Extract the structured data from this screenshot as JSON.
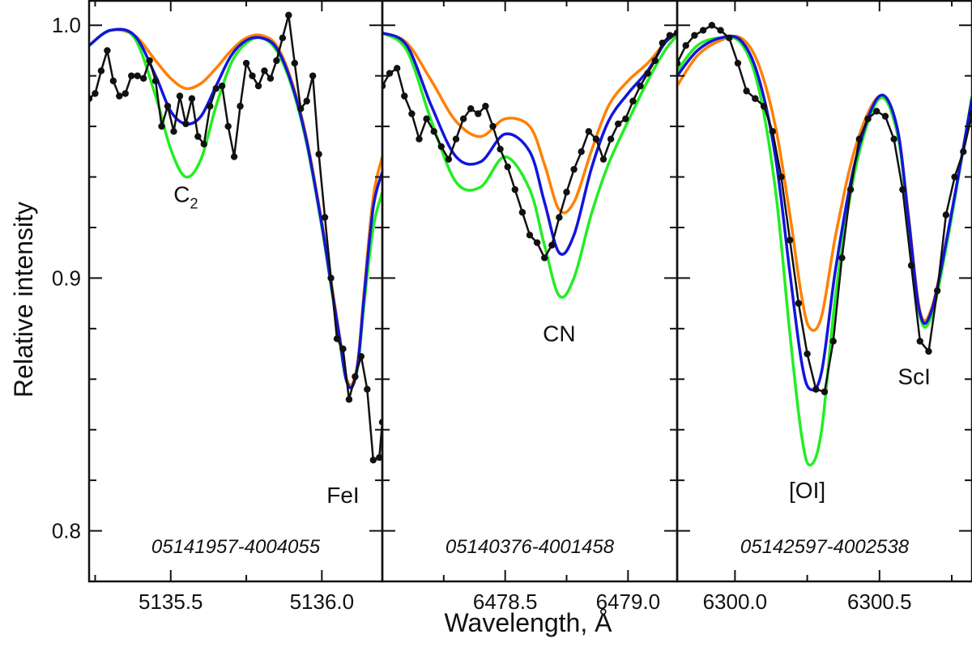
{
  "chart_data": {
    "type": "line",
    "ylabel": "Relative intensity",
    "xlabel": "Wavelength, Å",
    "ylim": [
      0.78,
      1.01
    ],
    "yticks": [
      {
        "value": 1.0,
        "label": "1.0"
      },
      {
        "value": 0.9,
        "label": "0.9"
      },
      {
        "value": 0.8,
        "label": "0.8"
      }
    ],
    "y_minor_ticks": [
      0.98,
      0.96,
      0.94,
      0.92,
      0.88,
      0.86,
      0.84,
      0.82
    ],
    "colors": {
      "observed": "#111111",
      "orange": "#ff8000",
      "green": "#22ee22",
      "blue": "#1414dd"
    },
    "panels": [
      {
        "id_label": "05141957-4004055",
        "xlim": [
          5135.23,
          5136.2
        ],
        "xticks": [
          {
            "value": 5135.5,
            "label": "5135.5"
          },
          {
            "value": 5136.0,
            "label": "5136.0"
          }
        ],
        "x_minor_ticks": [
          5135.25,
          5135.75
        ],
        "line_labels": [
          {
            "text": "C",
            "sub": "2",
            "x": 5135.55,
            "y": 0.93
          },
          {
            "text": "FeI",
            "x": 5136.07,
            "y": 0.811
          }
        ],
        "series": [
          {
            "key": "orange",
            "x": [
              5135.23,
              5135.3,
              5135.38,
              5135.45,
              5135.5,
              5135.55,
              5135.6,
              5135.65,
              5135.7,
              5135.75,
              5135.8,
              5135.85,
              5135.9,
              5135.95,
              5136.0,
              5136.03,
              5136.06,
              5136.08,
              5136.1,
              5136.12,
              5136.14,
              5136.17,
              5136.2
            ],
            "y": [
              0.992,
              0.998,
              0.996,
              0.986,
              0.979,
              0.975,
              0.977,
              0.983,
              0.99,
              0.995,
              0.996,
              0.992,
              0.978,
              0.955,
              0.922,
              0.899,
              0.876,
              0.861,
              0.858,
              0.868,
              0.895,
              0.932,
              0.948
            ]
          },
          {
            "key": "green",
            "x": [
              5135.23,
              5135.3,
              5135.38,
              5135.45,
              5135.5,
              5135.55,
              5135.6,
              5135.65,
              5135.7,
              5135.75,
              5135.8,
              5135.85,
              5135.9,
              5135.95,
              5136.0,
              5136.03,
              5136.06,
              5136.08,
              5136.1,
              5136.12,
              5136.14,
              5136.17,
              5136.2
            ],
            "y": [
              0.992,
              0.998,
              0.995,
              0.972,
              0.951,
              0.94,
              0.947,
              0.968,
              0.985,
              0.993,
              0.995,
              0.99,
              0.976,
              0.953,
              0.92,
              0.897,
              0.874,
              0.86,
              0.857,
              0.866,
              0.89,
              0.92,
              0.934
            ]
          },
          {
            "key": "blue",
            "x": [
              5135.23,
              5135.3,
              5135.38,
              5135.45,
              5135.5,
              5135.55,
              5135.6,
              5135.65,
              5135.7,
              5135.75,
              5135.8,
              5135.85,
              5135.9,
              5135.95,
              5136.0,
              5136.03,
              5136.06,
              5136.08,
              5136.1,
              5136.12,
              5136.14,
              5136.17,
              5136.2
            ],
            "y": [
              0.992,
              0.998,
              0.996,
              0.98,
              0.966,
              0.961,
              0.964,
              0.976,
              0.988,
              0.994,
              0.995,
              0.991,
              0.977,
              0.954,
              0.921,
              0.898,
              0.875,
              0.86,
              0.857,
              0.867,
              0.893,
              0.928,
              0.942
            ]
          },
          {
            "key": "observed",
            "points": true,
            "x": [
              5135.23,
              5135.25,
              5135.27,
              5135.29,
              5135.31,
              5135.33,
              5135.35,
              5135.37,
              5135.39,
              5135.41,
              5135.43,
              5135.45,
              5135.47,
              5135.49,
              5135.51,
              5135.53,
              5135.55,
              5135.57,
              5135.59,
              5135.61,
              5135.63,
              5135.65,
              5135.67,
              5135.69,
              5135.71,
              5135.73,
              5135.75,
              5135.77,
              5135.79,
              5135.81,
              5135.83,
              5135.85,
              5135.87,
              5135.89,
              5135.91,
              5135.93,
              5135.95,
              5135.97,
              5135.99,
              5136.01,
              5136.03,
              5136.05,
              5136.07,
              5136.09,
              5136.11,
              5136.13,
              5136.15,
              5136.17,
              5136.19,
              5136.2
            ],
            "y": [
              0.971,
              0.973,
              0.982,
              0.99,
              0.978,
              0.972,
              0.973,
              0.98,
              0.98,
              0.979,
              0.986,
              0.978,
              0.96,
              0.968,
              0.958,
              0.972,
              0.961,
              0.971,
              0.956,
              0.953,
              0.968,
              0.975,
              0.976,
              0.96,
              0.948,
              0.968,
              0.985,
              0.98,
              0.976,
              0.982,
              0.979,
              0.986,
              0.995,
              1.004,
              0.985,
              0.967,
              0.97,
              0.98,
              0.949,
              0.924,
              0.9,
              0.876,
              0.872,
              0.852,
              0.861,
              0.869,
              0.856,
              0.828,
              0.829,
              0.843
            ]
          }
        ]
      },
      {
        "id_label": "05140376-4001458",
        "xlim": [
          5135.23,
          5136.2
        ],
        "xticks": [],
        "x_minor_ticks": [],
        "dx": 1343.0,
        "xticks_real": [
          {
            "value": 6478.5,
            "label": "6478.5"
          },
          {
            "value": 6479.0,
            "label": "6479.0"
          }
        ],
        "x_real_minor_ticks": [
          6478.25,
          6478.75
        ],
        "xlim_real": [
          6478.0,
          6479.2
        ],
        "line_labels": [
          {
            "text": "CN",
            "x": 6478.72,
            "y": 0.875
          }
        ],
        "series": [
          {
            "key": "orange",
            "x": [
              6478.0,
              6478.1,
              6478.2,
              6478.3,
              6478.4,
              6478.5,
              6478.6,
              6478.66,
              6478.72,
              6478.78,
              6478.85,
              6478.92,
              6479.0,
              6479.08,
              6479.15,
              6479.2
            ],
            "y": [
              0.997,
              0.993,
              0.978,
              0.962,
              0.956,
              0.963,
              0.96,
              0.945,
              0.927,
              0.93,
              0.95,
              0.968,
              0.978,
              0.985,
              0.993,
              0.997
            ]
          },
          {
            "key": "green",
            "x": [
              6478.0,
              6478.1,
              6478.2,
              6478.3,
              6478.4,
              6478.5,
              6478.6,
              6478.66,
              6478.72,
              6478.78,
              6478.85,
              6478.92,
              6479.0,
              6479.08,
              6479.15,
              6479.2
            ],
            "y": [
              0.997,
              0.99,
              0.962,
              0.938,
              0.936,
              0.948,
              0.935,
              0.913,
              0.893,
              0.9,
              0.925,
              0.945,
              0.962,
              0.978,
              0.99,
              0.996
            ]
          },
          {
            "key": "blue",
            "x": [
              6478.0,
              6478.1,
              6478.2,
              6478.3,
              6478.4,
              6478.5,
              6478.6,
              6478.66,
              6478.72,
              6478.78,
              6478.85,
              6478.92,
              6479.0,
              6479.08,
              6479.15,
              6479.2
            ],
            "y": [
              0.997,
              0.992,
              0.968,
              0.948,
              0.946,
              0.957,
              0.95,
              0.93,
              0.91,
              0.917,
              0.943,
              0.962,
              0.973,
              0.982,
              0.993,
              0.997
            ]
          },
          {
            "key": "observed",
            "points": true,
            "x": [
              6478.0,
              6478.03,
              6478.06,
              6478.09,
              6478.12,
              6478.15,
              6478.18,
              6478.21,
              6478.24,
              6478.27,
              6478.3,
              6478.33,
              6478.36,
              6478.39,
              6478.42,
              6478.45,
              6478.48,
              6478.51,
              6478.54,
              6478.57,
              6478.6,
              6478.63,
              6478.66,
              6478.69,
              6478.72,
              6478.75,
              6478.78,
              6478.81,
              6478.84,
              6478.87,
              6478.9,
              6478.93,
              6478.96,
              6478.99,
              6479.02,
              6479.05,
              6479.08,
              6479.11,
              6479.14,
              6479.17,
              6479.2
            ],
            "y": [
              0.976,
              0.981,
              0.983,
              0.972,
              0.965,
              0.955,
              0.963,
              0.958,
              0.952,
              0.947,
              0.955,
              0.963,
              0.967,
              0.965,
              0.968,
              0.96,
              0.951,
              0.944,
              0.935,
              0.926,
              0.917,
              0.914,
              0.908,
              0.913,
              0.924,
              0.934,
              0.943,
              0.95,
              0.958,
              0.955,
              0.947,
              0.955,
              0.961,
              0.963,
              0.97,
              0.976,
              0.981,
              0.986,
              0.993,
              0.996,
              0.997
            ]
          }
        ]
      },
      {
        "id_label": "05142597-4002538",
        "xlim_real": [
          6299.8,
          6300.82
        ],
        "xticks_real": [
          {
            "value": 6300.0,
            "label": "6300.0"
          },
          {
            "value": 6300.5,
            "label": "6300.5"
          }
        ],
        "x_real_minor_ticks": [
          6300.25,
          6300.75
        ],
        "line_labels": [
          {
            "text": "[OI]",
            "x": 6300.25,
            "y": 0.813
          },
          {
            "text": "ScI",
            "x": 6300.62,
            "y": 0.858
          }
        ],
        "series": [
          {
            "key": "orange",
            "x": [
              6299.8,
              6299.87,
              6299.95,
              6300.02,
              6300.08,
              6300.14,
              6300.19,
              6300.23,
              6300.26,
              6300.3,
              6300.35,
              6300.42,
              6300.5,
              6300.56,
              6300.6,
              6300.64,
              6300.68,
              6300.74,
              6300.82
            ],
            "y": [
              0.976,
              0.988,
              0.994,
              0.995,
              0.985,
              0.96,
              0.925,
              0.893,
              0.88,
              0.885,
              0.918,
              0.953,
              0.972,
              0.96,
              0.925,
              0.887,
              0.888,
              0.92,
              0.97
            ]
          },
          {
            "key": "green",
            "x": [
              6299.8,
              6299.87,
              6299.95,
              6300.02,
              6300.08,
              6300.14,
              6300.19,
              6300.23,
              6300.26,
              6300.3,
              6300.35,
              6300.42,
              6300.5,
              6300.56,
              6300.6,
              6300.64,
              6300.68,
              6300.74,
              6300.82
            ],
            "y": [
              0.982,
              0.992,
              0.995,
              0.993,
              0.976,
              0.935,
              0.878,
              0.838,
              0.826,
              0.84,
              0.895,
              0.945,
              0.971,
              0.958,
              0.923,
              0.885,
              0.885,
              0.918,
              0.972
            ]
          },
          {
            "key": "blue",
            "x": [
              6299.8,
              6299.87,
              6299.95,
              6300.02,
              6300.08,
              6300.14,
              6300.19,
              6300.23,
              6300.26,
              6300.3,
              6300.35,
              6300.42,
              6300.5,
              6300.56,
              6300.6,
              6300.64,
              6300.68,
              6300.74,
              6300.82
            ],
            "y": [
              0.98,
              0.99,
              0.995,
              0.994,
              0.98,
              0.948,
              0.902,
              0.867,
              0.856,
              0.863,
              0.905,
              0.948,
              0.972,
              0.96,
              0.924,
              0.886,
              0.887,
              0.92,
              0.971
            ]
          },
          {
            "key": "observed",
            "points": true,
            "x": [
              6299.8,
              6299.83,
              6299.86,
              6299.89,
              6299.92,
              6299.95,
              6299.98,
              6300.01,
              6300.04,
              6300.07,
              6300.1,
              6300.13,
              6300.16,
              6300.19,
              6300.22,
              6300.25,
              6300.28,
              6300.31,
              6300.34,
              6300.37,
              6300.4,
              6300.43,
              6300.46,
              6300.49,
              6300.52,
              6300.55,
              6300.58,
              6300.61,
              6300.64,
              6300.67,
              6300.7,
              6300.73,
              6300.76,
              6300.79,
              6300.82
            ],
            "y": [
              0.985,
              0.992,
              0.996,
              0.998,
              1.0,
              0.998,
              0.995,
              0.985,
              0.974,
              0.971,
              0.968,
              0.958,
              0.94,
              0.915,
              0.89,
              0.87,
              0.856,
              0.855,
              0.875,
              0.908,
              0.935,
              0.955,
              0.963,
              0.966,
              0.964,
              0.955,
              0.935,
              0.905,
              0.875,
              0.871,
              0.895,
              0.925,
              0.94,
              0.95,
              0.965
            ]
          }
        ]
      }
    ]
  }
}
